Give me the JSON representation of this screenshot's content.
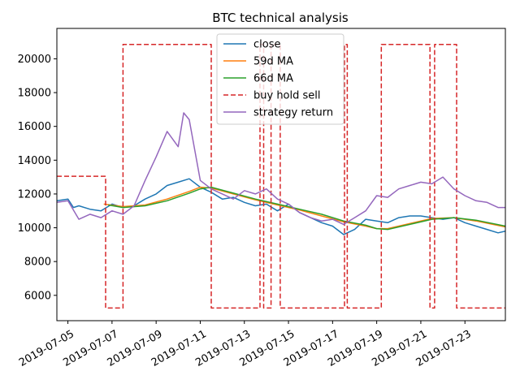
{
  "chart_data": {
    "type": "line",
    "title": "BTC technical analysis",
    "xlabel": "",
    "ylabel": "",
    "xlim": [
      "2019-07-04T12:00",
      "2019-07-24T20:00"
    ],
    "ylim": [
      4500,
      21800
    ],
    "x_ticks": [
      "2019-07-05",
      "2019-07-07",
      "2019-07-09",
      "2019-07-11",
      "2019-07-13",
      "2019-07-15",
      "2019-07-17",
      "2019-07-19",
      "2019-07-21",
      "2019-07-23"
    ],
    "y_ticks": [
      6000,
      8000,
      10000,
      12000,
      14000,
      16000,
      18000,
      20000
    ],
    "legend_position": "top-center",
    "grid": false,
    "series": [
      {
        "name": "close",
        "color": "#1f77b4",
        "style": "solid",
        "x": [
          "2019-07-04T12:00",
          "2019-07-05T00:00",
          "2019-07-05T06:00",
          "2019-07-05T12:00",
          "2019-07-06T00:00",
          "2019-07-06T12:00",
          "2019-07-07T00:00",
          "2019-07-07T12:00",
          "2019-07-08T00:00",
          "2019-07-08T06:00",
          "2019-07-08T12:00",
          "2019-07-09T00:00",
          "2019-07-09T12:00",
          "2019-07-10T00:00",
          "2019-07-10T12:00",
          "2019-07-11T00:00",
          "2019-07-11T12:00",
          "2019-07-12T00:00",
          "2019-07-12T12:00",
          "2019-07-13T00:00",
          "2019-07-13T12:00",
          "2019-07-14T00:00",
          "2019-07-14T12:00",
          "2019-07-15T00:00",
          "2019-07-15T12:00",
          "2019-07-16T00:00",
          "2019-07-16T12:00",
          "2019-07-17T00:00",
          "2019-07-17T12:00",
          "2019-07-18T00:00",
          "2019-07-18T12:00",
          "2019-07-19T00:00",
          "2019-07-19T12:00",
          "2019-07-20T00:00",
          "2019-07-20T12:00",
          "2019-07-21T00:00",
          "2019-07-21T12:00",
          "2019-07-22T00:00",
          "2019-07-22T12:00",
          "2019-07-23T00:00",
          "2019-07-23T12:00",
          "2019-07-24T00:00",
          "2019-07-24T12:00",
          "2019-07-24T20:00"
        ],
        "values": [
          11600,
          11700,
          11200,
          11300,
          11100,
          11000,
          11400,
          11200,
          11300,
          11500,
          11700,
          12000,
          12500,
          12700,
          12900,
          12400,
          12100,
          11700,
          11800,
          11500,
          11300,
          11400,
          11000,
          11400,
          10900,
          10600,
          10300,
          10100,
          9600,
          9900,
          10500,
          10400,
          10300,
          10600,
          10700,
          10700,
          10600,
          10500,
          10600,
          10300,
          10100,
          9900,
          9700,
          9800
        ]
      },
      {
        "name": "59d MA",
        "color": "#ff7f0e",
        "style": "solid",
        "x": [
          "2019-07-06T15:00",
          "2019-07-07T12:00",
          "2019-07-08T12:00",
          "2019-07-09T12:00",
          "2019-07-10T12:00",
          "2019-07-11T00:00",
          "2019-07-11T12:00",
          "2019-07-12T12:00",
          "2019-07-13T12:00",
          "2019-07-14T12:00",
          "2019-07-15T12:00",
          "2019-07-16T12:00",
          "2019-07-17T12:00",
          "2019-07-18T12:00",
          "2019-07-19T00:00",
          "2019-07-19T12:00",
          "2019-07-20T12:00",
          "2019-07-21T12:00",
          "2019-07-22T12:00",
          "2019-07-23T12:00",
          "2019-07-24T20:00"
        ],
        "values": [
          11400,
          11250,
          11350,
          11700,
          12150,
          12400,
          12350,
          12000,
          11650,
          11350,
          11050,
          10700,
          10350,
          10100,
          9950,
          9950,
          10250,
          10550,
          10600,
          10400,
          10050
        ]
      },
      {
        "name": "66d MA",
        "color": "#2ca02c",
        "style": "solid",
        "x": [
          "2019-07-06T20:00",
          "2019-07-07T12:00",
          "2019-07-08T12:00",
          "2019-07-09T12:00",
          "2019-07-10T12:00",
          "2019-07-11T00:00",
          "2019-07-11T12:00",
          "2019-07-12T12:00",
          "2019-07-13T12:00",
          "2019-07-14T12:00",
          "2019-07-15T12:00",
          "2019-07-16T12:00",
          "2019-07-17T12:00",
          "2019-07-18T12:00",
          "2019-07-19T00:00",
          "2019-07-19T12:00",
          "2019-07-20T12:00",
          "2019-07-21T12:00",
          "2019-07-22T12:00",
          "2019-07-23T12:00",
          "2019-07-24T20:00"
        ],
        "values": [
          11350,
          11200,
          11300,
          11600,
          12050,
          12300,
          12400,
          12050,
          11700,
          11400,
          11100,
          10800,
          10400,
          10150,
          9950,
          9900,
          10200,
          10500,
          10600,
          10450,
          10100
        ]
      },
      {
        "name": "buy hold sell",
        "color": "#d62728",
        "style": "dashed",
        "x": [
          "2019-07-04T12:00",
          "2019-07-06T17:00",
          "2019-07-06T17:00",
          "2019-07-07T12:00",
          "2019-07-07T12:00",
          "2019-07-11T12:00",
          "2019-07-11T12:00",
          "2019-07-13T17:00",
          "2019-07-13T17:00",
          "2019-07-13T21:00",
          "2019-07-13T21:00",
          "2019-07-14T05:00",
          "2019-07-14T05:00",
          "2019-07-14T15:00",
          "2019-07-14T15:00",
          "2019-07-17T13:00",
          "2019-07-17T13:00",
          "2019-07-17T16:00",
          "2019-07-17T16:00",
          "2019-07-19T05:00",
          "2019-07-19T05:00",
          "2019-07-21T10:00",
          "2019-07-21T10:00",
          "2019-07-21T15:00",
          "2019-07-21T15:00",
          "2019-07-22T15:00",
          "2019-07-22T15:00",
          "2019-07-22T19:00",
          "2019-07-22T19:00",
          "2019-07-24T20:00"
        ],
        "values": [
          13050,
          13050,
          5250,
          5250,
          20850,
          20850,
          5250,
          5250,
          20850,
          20850,
          5250,
          5250,
          20850,
          20850,
          5250,
          5250,
          20850,
          20850,
          5250,
          5250,
          20850,
          20850,
          5250,
          5250,
          20850,
          20850,
          5250,
          5250,
          5250,
          5250
        ]
      },
      {
        "name": "strategy return",
        "color": "#9467bd",
        "style": "solid",
        "x": [
          "2019-07-04T12:00",
          "2019-07-05T00:00",
          "2019-07-05T12:00",
          "2019-07-06T00:00",
          "2019-07-06T12:00",
          "2019-07-07T00:00",
          "2019-07-07T12:00",
          "2019-07-08T00:00",
          "2019-07-08T12:00",
          "2019-07-09T00:00",
          "2019-07-09T12:00",
          "2019-07-10T00:00",
          "2019-07-10T06:00",
          "2019-07-10T12:00",
          "2019-07-11T00:00",
          "2019-07-11T12:00",
          "2019-07-12T00:00",
          "2019-07-12T12:00",
          "2019-07-13T00:00",
          "2019-07-13T12:00",
          "2019-07-14T00:00",
          "2019-07-14T12:00",
          "2019-07-15T00:00",
          "2019-07-15T12:00",
          "2019-07-16T00:00",
          "2019-07-16T12:00",
          "2019-07-17T00:00",
          "2019-07-17T12:00",
          "2019-07-18T00:00",
          "2019-07-18T12:00",
          "2019-07-19T00:00",
          "2019-07-19T12:00",
          "2019-07-20T00:00",
          "2019-07-20T12:00",
          "2019-07-21T00:00",
          "2019-07-21T12:00",
          "2019-07-22T00:00",
          "2019-07-22T12:00",
          "2019-07-23T00:00",
          "2019-07-23T12:00",
          "2019-07-24T00:00",
          "2019-07-24T12:00",
          "2019-07-24T20:00"
        ],
        "values": [
          11500,
          11600,
          10500,
          10800,
          10600,
          11000,
          10800,
          11300,
          12800,
          14200,
          15700,
          14800,
          16800,
          16400,
          12800,
          12300,
          12000,
          11700,
          12200,
          12000,
          12300,
          11700,
          11400,
          10900,
          10600,
          10400,
          10500,
          10200,
          10600,
          11000,
          11900,
          11800,
          12300,
          12500,
          12700,
          12600,
          13000,
          12300,
          11900,
          11600,
          11500,
          11200,
          11200
        ]
      }
    ]
  }
}
